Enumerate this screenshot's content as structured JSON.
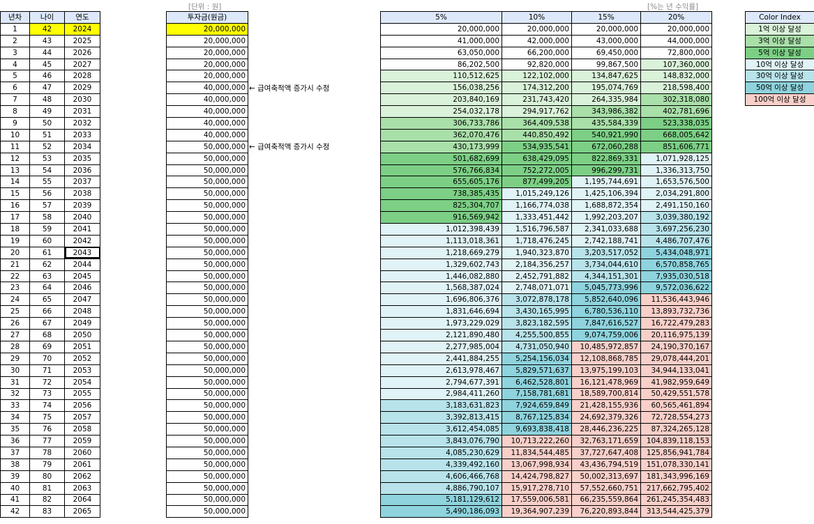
{
  "labels": {
    "unit_note": "[단위 : 원]",
    "rate_note": "[%는 년 수익률]",
    "arrow_note": "← 급여축적액 증가시 수정"
  },
  "headers": {
    "year_no": "년차",
    "age": "나이",
    "year": "연도",
    "invest": "투자금(원금)",
    "rates": [
      "5%",
      "10%",
      "15%",
      "20%"
    ]
  },
  "highlight": {
    "row_index": 0,
    "color": "#ffff00",
    "selected_row_index": 19
  },
  "legend": {
    "title": "Color Index",
    "items": [
      {
        "label": "1억 이상 달성",
        "color": "#d9f2d9"
      },
      {
        "label": "3억 이상 달성",
        "color": "#a9dfa9"
      },
      {
        "label": "5억 이상 달성",
        "color": "#7ccf85"
      },
      {
        "label": "10억 이상 달성",
        "color": "#e0f3f6"
      },
      {
        "label": "30억 이상 달성",
        "color": "#b8e3ea"
      },
      {
        "label": "50억 이상 달성",
        "color": "#8ed3dd"
      },
      {
        "label": "100억 이상 달성",
        "color": "#f8cfc9"
      }
    ]
  },
  "rows": [
    {
      "n": "1",
      "age": "42",
      "year": "2024",
      "invest": "20,000,000",
      "v": [
        "20,000,000",
        "20,000,000",
        "20,000,000",
        "20,000,000"
      ],
      "tier": [
        -1,
        -1,
        -1,
        -1
      ],
      "note": false
    },
    {
      "n": "2",
      "age": "43",
      "year": "2025",
      "invest": "20,000,000",
      "v": [
        "41,000,000",
        "42,000,000",
        "43,000,000",
        "44,000,000"
      ],
      "tier": [
        -1,
        -1,
        -1,
        -1
      ],
      "note": false
    },
    {
      "n": "3",
      "age": "44",
      "year": "2026",
      "invest": "20,000,000",
      "v": [
        "63,050,000",
        "66,200,000",
        "69,450,000",
        "72,800,000"
      ],
      "tier": [
        -1,
        -1,
        -1,
        -1
      ],
      "note": false
    },
    {
      "n": "4",
      "age": "45",
      "year": "2027",
      "invest": "20,000,000",
      "v": [
        "86,202,500",
        "92,820,000",
        "99,867,500",
        "107,360,000"
      ],
      "tier": [
        -1,
        -1,
        -1,
        0
      ],
      "note": false
    },
    {
      "n": "5",
      "age": "46",
      "year": "2028",
      "invest": "20,000,000",
      "v": [
        "110,512,625",
        "122,102,000",
        "134,847,625",
        "148,832,000"
      ],
      "tier": [
        0,
        0,
        0,
        0
      ],
      "note": false
    },
    {
      "n": "6",
      "age": "47",
      "year": "2029",
      "invest": "40,000,000",
      "v": [
        "156,038,256",
        "174,312,200",
        "195,074,769",
        "218,598,400"
      ],
      "tier": [
        0,
        0,
        0,
        0
      ],
      "note": true
    },
    {
      "n": "7",
      "age": "48",
      "year": "2030",
      "invest": "40,000,000",
      "v": [
        "203,840,169",
        "231,743,420",
        "264,335,984",
        "302,318,080"
      ],
      "tier": [
        0,
        0,
        0,
        1
      ],
      "note": false
    },
    {
      "n": "8",
      "age": "49",
      "year": "2031",
      "invest": "40,000,000",
      "v": [
        "254,032,178",
        "294,917,762",
        "343,986,382",
        "402,781,696"
      ],
      "tier": [
        0,
        0,
        1,
        1
      ],
      "note": false
    },
    {
      "n": "9",
      "age": "50",
      "year": "2032",
      "invest": "40,000,000",
      "v": [
        "306,733,786",
        "364,409,538",
        "435,584,339",
        "523,338,035"
      ],
      "tier": [
        1,
        1,
        1,
        2
      ],
      "note": false
    },
    {
      "n": "10",
      "age": "51",
      "year": "2033",
      "invest": "40,000,000",
      "v": [
        "362,070,476",
        "440,850,492",
        "540,921,990",
        "668,005,642"
      ],
      "tier": [
        1,
        1,
        2,
        2
      ],
      "note": false
    },
    {
      "n": "11",
      "age": "52",
      "year": "2034",
      "invest": "50,000,000",
      "v": [
        "430,173,999",
        "534,935,541",
        "672,060,288",
        "851,606,771"
      ],
      "tier": [
        1,
        2,
        2,
        2
      ],
      "note": true
    },
    {
      "n": "12",
      "age": "53",
      "year": "2035",
      "invest": "50,000,000",
      "v": [
        "501,682,699",
        "638,429,095",
        "822,869,331",
        "1,071,928,125"
      ],
      "tier": [
        2,
        2,
        2,
        3
      ],
      "note": false
    },
    {
      "n": "13",
      "age": "54",
      "year": "2036",
      "invest": "50,000,000",
      "v": [
        "576,766,834",
        "752,272,005",
        "996,299,731",
        "1,336,313,750"
      ],
      "tier": [
        2,
        2,
        2,
        3
      ],
      "note": false
    },
    {
      "n": "14",
      "age": "55",
      "year": "2037",
      "invest": "50,000,000",
      "v": [
        "655,605,176",
        "877,499,205",
        "1,195,744,691",
        "1,653,576,500"
      ],
      "tier": [
        2,
        2,
        3,
        3
      ],
      "note": false
    },
    {
      "n": "15",
      "age": "56",
      "year": "2038",
      "invest": "50,000,000",
      "v": [
        "738,385,435",
        "1,015,249,126",
        "1,425,106,394",
        "2,034,291,800"
      ],
      "tier": [
        2,
        3,
        3,
        3
      ],
      "note": false
    },
    {
      "n": "16",
      "age": "57",
      "year": "2039",
      "invest": "50,000,000",
      "v": [
        "825,304,707",
        "1,166,774,038",
        "1,688,872,354",
        "2,491,150,160"
      ],
      "tier": [
        2,
        3,
        3,
        3
      ],
      "note": false
    },
    {
      "n": "17",
      "age": "58",
      "year": "2040",
      "invest": "50,000,000",
      "v": [
        "916,569,942",
        "1,333,451,442",
        "1,992,203,207",
        "3,039,380,192"
      ],
      "tier": [
        2,
        3,
        3,
        4
      ],
      "note": false
    },
    {
      "n": "18",
      "age": "59",
      "year": "2041",
      "invest": "50,000,000",
      "v": [
        "1,012,398,439",
        "1,516,796,587",
        "2,341,033,688",
        "3,697,256,230"
      ],
      "tier": [
        3,
        3,
        3,
        4
      ],
      "note": false
    },
    {
      "n": "19",
      "age": "60",
      "year": "2042",
      "invest": "50,000,000",
      "v": [
        "1,113,018,361",
        "1,718,476,245",
        "2,742,188,741",
        "4,486,707,476"
      ],
      "tier": [
        3,
        3,
        3,
        4
      ],
      "note": false
    },
    {
      "n": "20",
      "age": "61",
      "year": "2043",
      "invest": "50,000,000",
      "v": [
        "1,218,669,279",
        "1,940,323,870",
        "3,203,517,052",
        "5,434,048,971"
      ],
      "tier": [
        3,
        3,
        4,
        5
      ],
      "note": false
    },
    {
      "n": "21",
      "age": "62",
      "year": "2044",
      "invest": "50,000,000",
      "v": [
        "1,329,602,743",
        "2,184,356,257",
        "3,734,044,610",
        "6,570,858,765"
      ],
      "tier": [
        3,
        3,
        4,
        5
      ],
      "note": false
    },
    {
      "n": "22",
      "age": "63",
      "year": "2045",
      "invest": "50,000,000",
      "v": [
        "1,446,082,880",
        "2,452,791,882",
        "4,344,151,301",
        "7,935,030,518"
      ],
      "tier": [
        3,
        3,
        4,
        5
      ],
      "note": false
    },
    {
      "n": "23",
      "age": "64",
      "year": "2046",
      "invest": "50,000,000",
      "v": [
        "1,568,387,024",
        "2,748,071,071",
        "5,045,773,996",
        "9,572,036,622"
      ],
      "tier": [
        3,
        3,
        5,
        5
      ],
      "note": false
    },
    {
      "n": "24",
      "age": "65",
      "year": "2047",
      "invest": "50,000,000",
      "v": [
        "1,696,806,376",
        "3,072,878,178",
        "5,852,640,096",
        "11,536,443,946"
      ],
      "tier": [
        3,
        4,
        5,
        6
      ],
      "note": false
    },
    {
      "n": "25",
      "age": "66",
      "year": "2048",
      "invest": "50,000,000",
      "v": [
        "1,831,646,694",
        "3,430,165,995",
        "6,780,536,110",
        "13,893,732,736"
      ],
      "tier": [
        3,
        4,
        5,
        6
      ],
      "note": false
    },
    {
      "n": "26",
      "age": "67",
      "year": "2049",
      "invest": "50,000,000",
      "v": [
        "1,973,229,029",
        "3,823,182,595",
        "7,847,616,527",
        "16,722,479,283"
      ],
      "tier": [
        3,
        4,
        5,
        6
      ],
      "note": false
    },
    {
      "n": "27",
      "age": "68",
      "year": "2050",
      "invest": "50,000,000",
      "v": [
        "2,121,890,480",
        "4,255,500,855",
        "9,074,759,006",
        "20,116,975,139"
      ],
      "tier": [
        3,
        4,
        5,
        6
      ],
      "note": false
    },
    {
      "n": "28",
      "age": "69",
      "year": "2051",
      "invest": "50,000,000",
      "v": [
        "2,277,985,004",
        "4,731,050,940",
        "10,485,972,857",
        "24,190,370,167"
      ],
      "tier": [
        3,
        4,
        6,
        6
      ],
      "note": false
    },
    {
      "n": "29",
      "age": "70",
      "year": "2052",
      "invest": "50,000,000",
      "v": [
        "2,441,884,255",
        "5,254,156,034",
        "12,108,868,785",
        "29,078,444,201"
      ],
      "tier": [
        3,
        5,
        6,
        6
      ],
      "note": false
    },
    {
      "n": "30",
      "age": "71",
      "year": "2053",
      "invest": "50,000,000",
      "v": [
        "2,613,978,467",
        "5,829,571,637",
        "13,975,199,103",
        "34,944,133,041"
      ],
      "tier": [
        3,
        5,
        6,
        6
      ],
      "note": false
    },
    {
      "n": "31",
      "age": "72",
      "year": "2054",
      "invest": "50,000,000",
      "v": [
        "2,794,677,391",
        "6,462,528,801",
        "16,121,478,969",
        "41,982,959,649"
      ],
      "tier": [
        3,
        5,
        6,
        6
      ],
      "note": false
    },
    {
      "n": "32",
      "age": "73",
      "year": "2055",
      "invest": "50,000,000",
      "v": [
        "2,984,411,260",
        "7,158,781,681",
        "18,589,700,814",
        "50,429,551,578"
      ],
      "tier": [
        3,
        5,
        6,
        6
      ],
      "note": false
    },
    {
      "n": "33",
      "age": "74",
      "year": "2056",
      "invest": "50,000,000",
      "v": [
        "3,183,631,823",
        "7,924,659,849",
        "21,428,155,936",
        "60,565,461,894"
      ],
      "tier": [
        4,
        5,
        6,
        6
      ],
      "note": false
    },
    {
      "n": "34",
      "age": "75",
      "year": "2057",
      "invest": "50,000,000",
      "v": [
        "3,392,813,415",
        "8,767,125,834",
        "24,692,379,326",
        "72,728,554,273"
      ],
      "tier": [
        4,
        5,
        6,
        6
      ],
      "note": false
    },
    {
      "n": "35",
      "age": "76",
      "year": "2058",
      "invest": "50,000,000",
      "v": [
        "3,612,454,085",
        "9,693,838,418",
        "28,446,236,225",
        "87,324,265,128"
      ],
      "tier": [
        4,
        5,
        6,
        6
      ],
      "note": false
    },
    {
      "n": "36",
      "age": "77",
      "year": "2059",
      "invest": "50,000,000",
      "v": [
        "3,843,076,790",
        "10,713,222,260",
        "32,763,171,659",
        "104,839,118,153"
      ],
      "tier": [
        4,
        6,
        6,
        6
      ],
      "note": false
    },
    {
      "n": "37",
      "age": "78",
      "year": "2060",
      "invest": "50,000,000",
      "v": [
        "4,085,230,629",
        "11,834,544,485",
        "37,727,647,408",
        "125,856,941,784"
      ],
      "tier": [
        4,
        6,
        6,
        6
      ],
      "note": false
    },
    {
      "n": "38",
      "age": "79",
      "year": "2061",
      "invest": "50,000,000",
      "v": [
        "4,339,492,160",
        "13,067,998,934",
        "43,436,794,519",
        "151,078,330,141"
      ],
      "tier": [
        4,
        6,
        6,
        6
      ],
      "note": false
    },
    {
      "n": "39",
      "age": "80",
      "year": "2062",
      "invest": "50,000,000",
      "v": [
        "4,606,466,768",
        "14,424,798,827",
        "50,002,313,697",
        "181,343,996,169"
      ],
      "tier": [
        4,
        6,
        6,
        6
      ],
      "note": false
    },
    {
      "n": "40",
      "age": "81",
      "year": "2063",
      "invest": "50,000,000",
      "v": [
        "4,886,790,107",
        "15,917,278,710",
        "57,552,660,751",
        "217,662,795,402"
      ],
      "tier": [
        4,
        6,
        6,
        6
      ],
      "note": false
    },
    {
      "n": "41",
      "age": "82",
      "year": "2064",
      "invest": "50,000,000",
      "v": [
        "5,181,129,612",
        "17,559,006,581",
        "66,235,559,864",
        "261,245,354,483"
      ],
      "tier": [
        5,
        6,
        6,
        6
      ],
      "note": false
    },
    {
      "n": "42",
      "age": "83",
      "year": "2065",
      "invest": "50,000,000",
      "v": [
        "5,490,186,093",
        "19,364,907,239",
        "76,220,893,844",
        "313,544,425,379"
      ],
      "tier": [
        5,
        6,
        6,
        6
      ],
      "note": false
    }
  ]
}
